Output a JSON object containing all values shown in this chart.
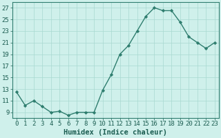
{
  "xlabel": "Humidex (Indice chaleur)",
  "x": [
    0,
    1,
    2,
    3,
    4,
    5,
    6,
    7,
    8,
    9,
    10,
    11,
    12,
    13,
    14,
    15,
    16,
    17,
    18,
    19,
    20,
    21,
    22,
    23
  ],
  "y": [
    12.5,
    10.2,
    11.0,
    10.0,
    9.0,
    9.2,
    8.5,
    9.0,
    9.0,
    9.0,
    12.8,
    15.5,
    19.0,
    20.5,
    23.0,
    25.5,
    27.0,
    26.5,
    26.5,
    24.5,
    22.0,
    21.0,
    20.0,
    21.0
  ],
  "line_color": "#2e7d6e",
  "marker": "D",
  "marker_size": 2.2,
  "line_width": 1.0,
  "bg_color": "#cff0eb",
  "grid_color": "#a8d8d0",
  "ylim": [
    8,
    28
  ],
  "yticks": [
    9,
    11,
    13,
    15,
    17,
    19,
    21,
    23,
    25,
    27
  ],
  "xticks": [
    0,
    1,
    2,
    3,
    4,
    5,
    6,
    7,
    8,
    9,
    10,
    11,
    12,
    13,
    14,
    15,
    16,
    17,
    18,
    19,
    20,
    21,
    22,
    23
  ],
  "xlabel_fontsize": 7.5,
  "tick_fontsize": 6.5,
  "label_color": "#1a5c50"
}
